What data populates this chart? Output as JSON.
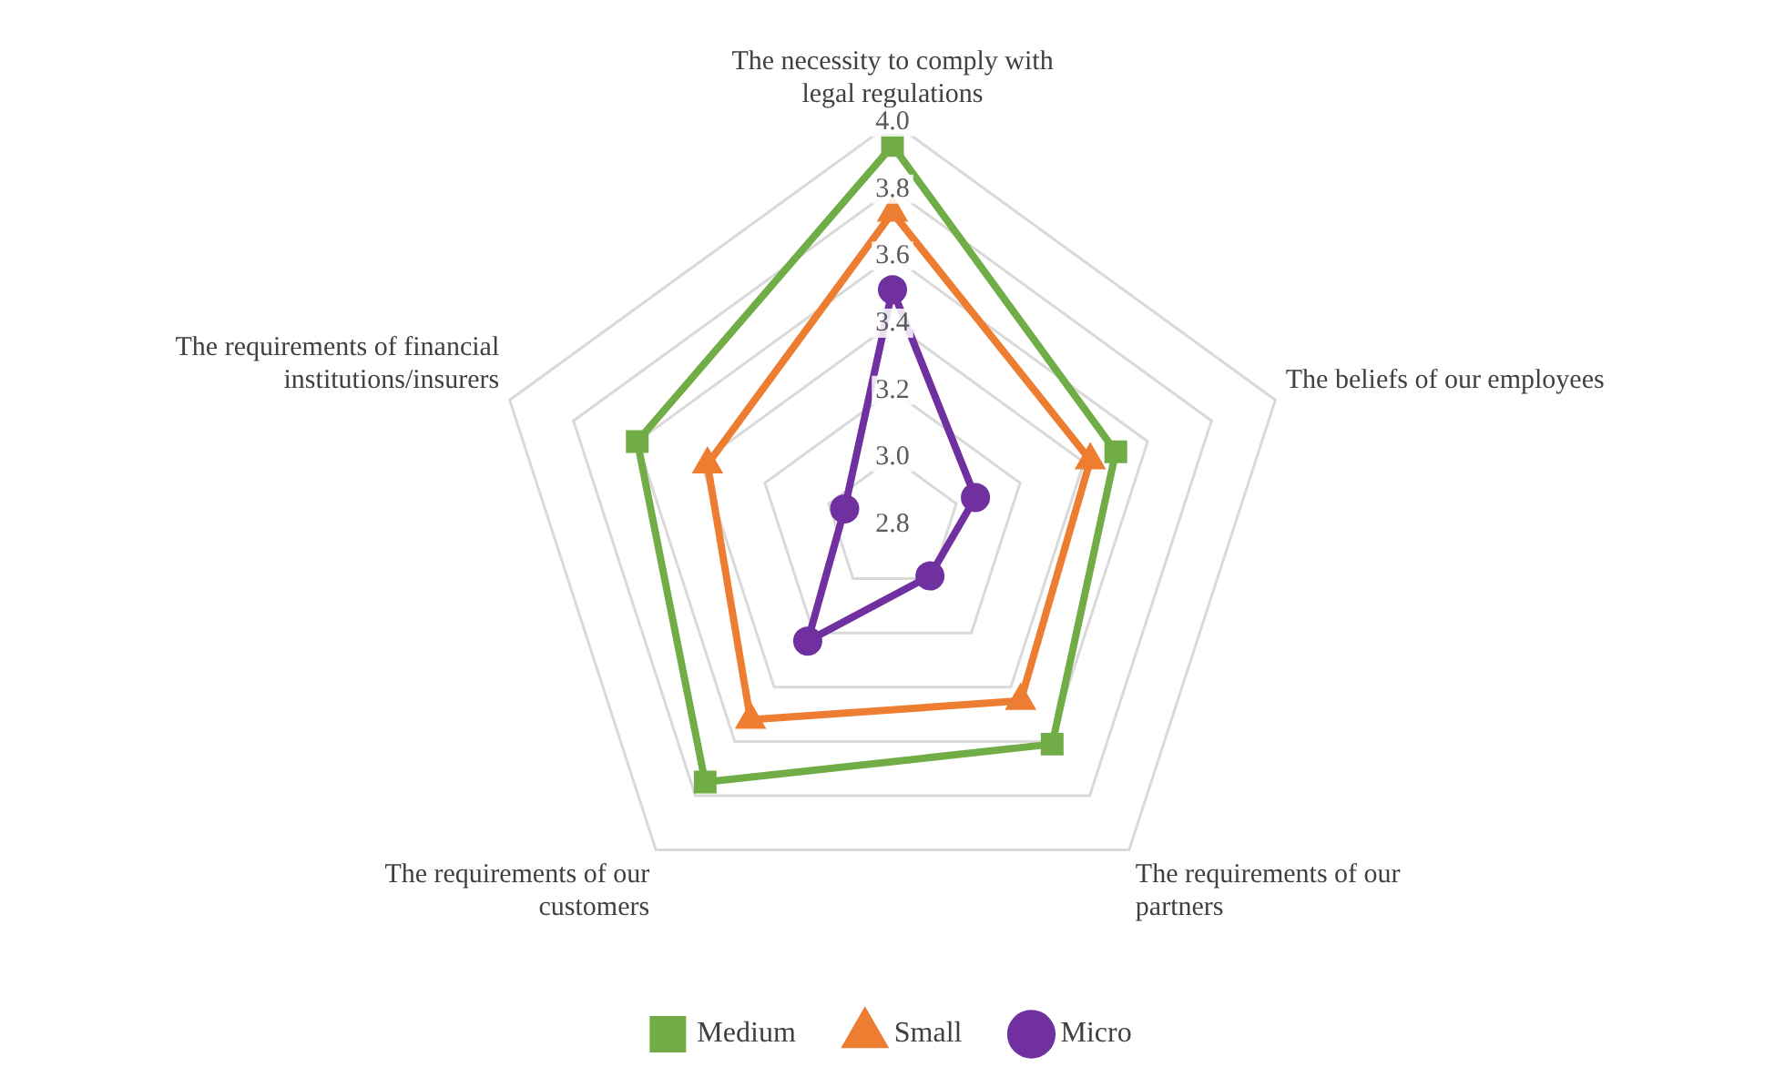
{
  "chart_data": {
    "type": "radar",
    "categories": [
      "The necessity to comply with\nlegal regulations",
      "The beliefs of our employees",
      "The requirements of our\npartners",
      "The requirements of our\ncustomers",
      "The requirements of financial\ninstitutions/insurers"
    ],
    "series": [
      {
        "name": "Medium",
        "color": "#70ad47",
        "marker": "square",
        "values": [
          3.93,
          3.5,
          3.61,
          3.75,
          3.6
        ]
      },
      {
        "name": "Small",
        "color": "#ed7d31",
        "marker": "triangle",
        "values": [
          3.73,
          3.42,
          3.45,
          3.52,
          3.38
        ]
      },
      {
        "name": "Micro",
        "color": "#7030a0",
        "marker": "circle",
        "values": [
          3.5,
          3.06,
          2.99,
          3.23,
          2.95
        ]
      }
    ],
    "ylim": [
      2.8,
      4
    ],
    "yticks": [
      2.8,
      {
        "value": 3,
        "label": "3.0"
      },
      3.2,
      3.4,
      3.6,
      3.8,
      {
        "value": 4,
        "label": "4.0"
      }
    ],
    "grid": true,
    "legend": "bottom"
  }
}
